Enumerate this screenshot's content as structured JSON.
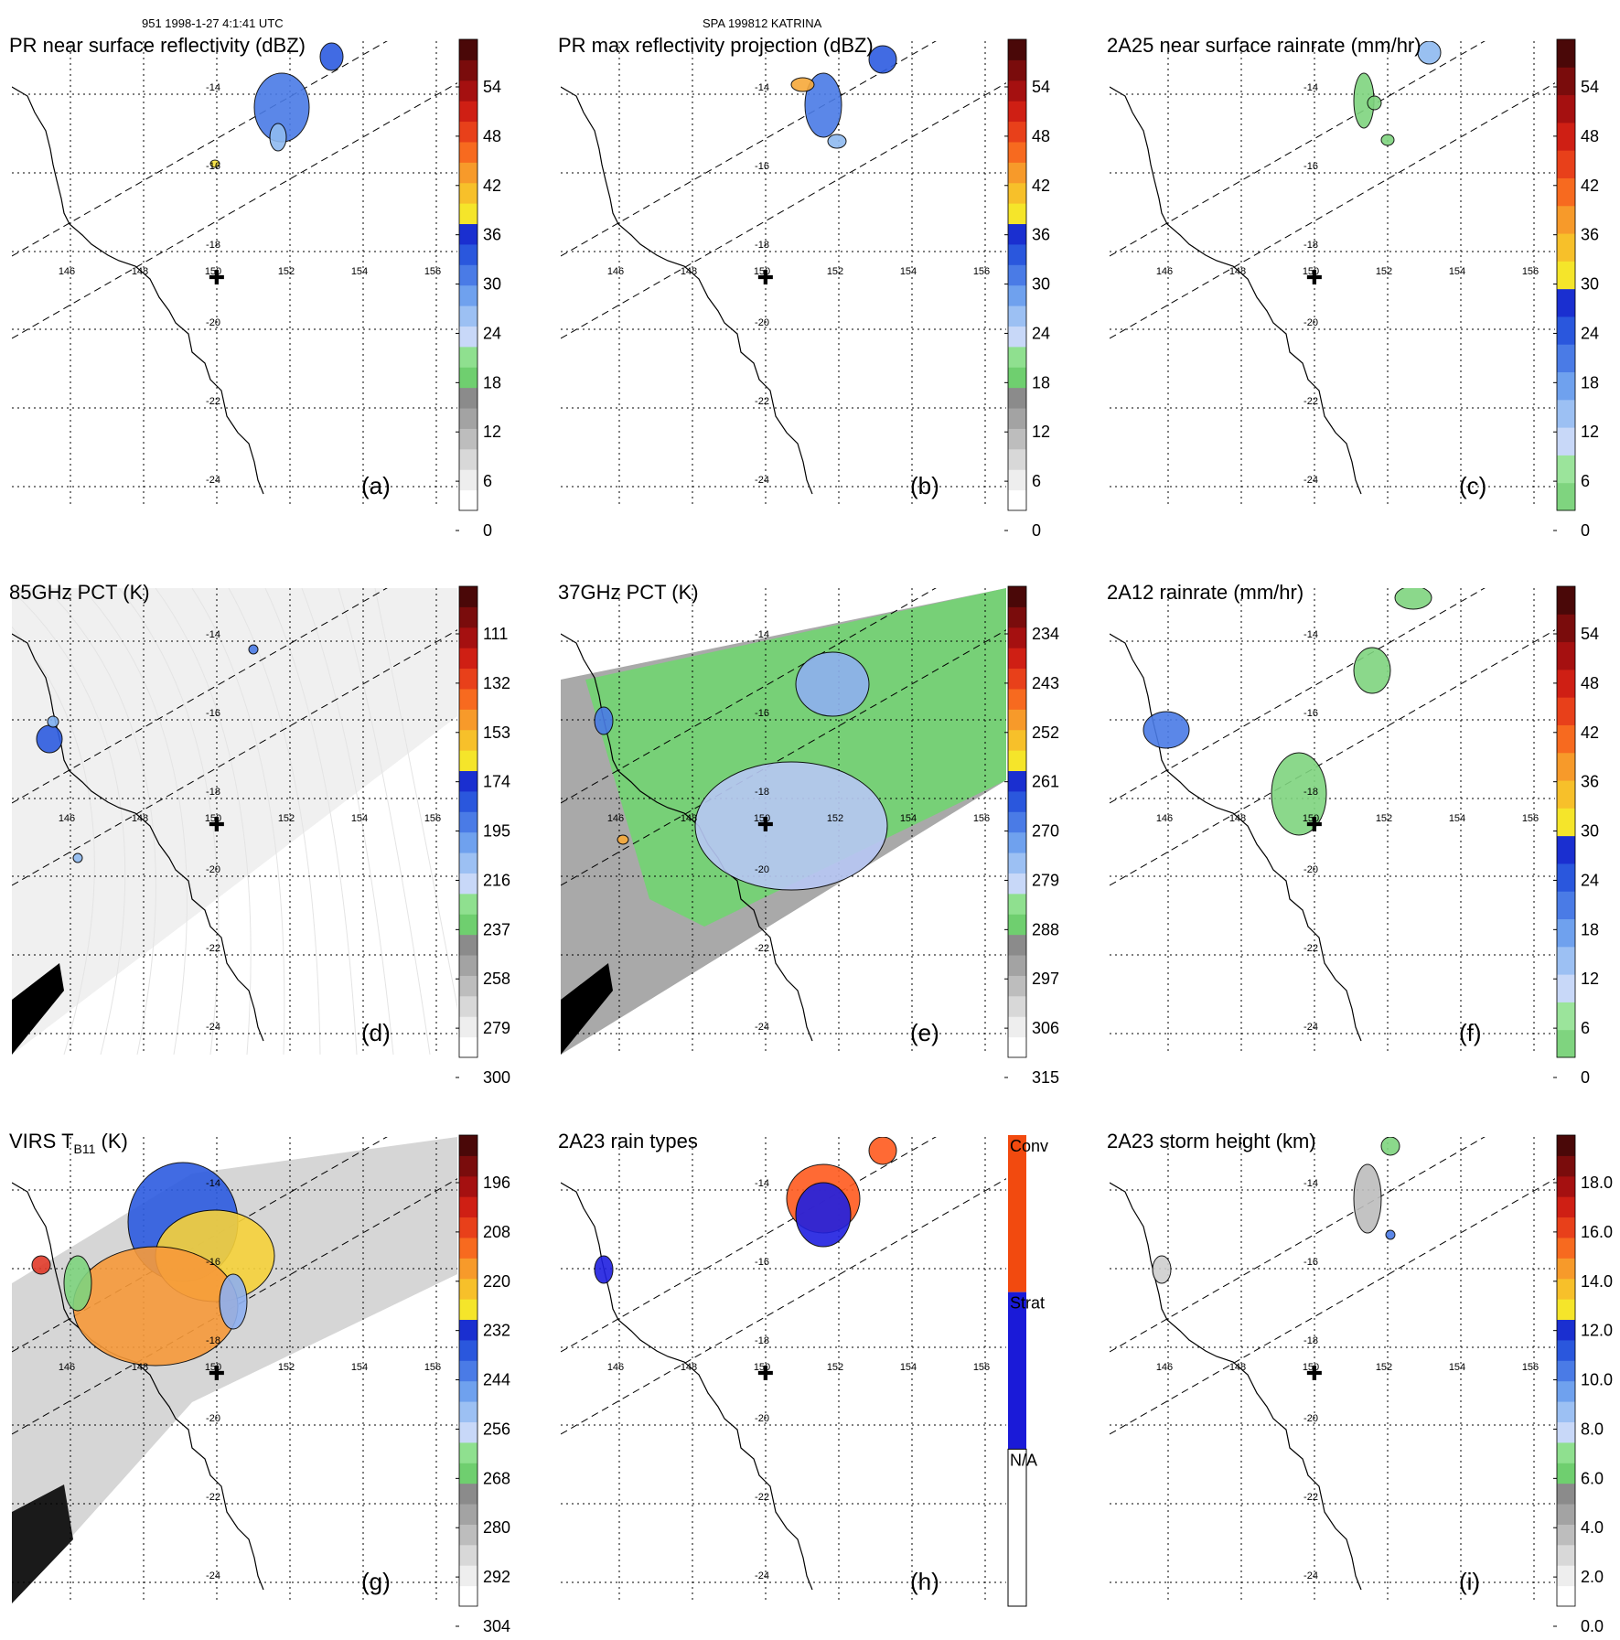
{
  "header": {
    "left": "951 1998-1-27 4:1:41 UTC",
    "center": "SPA 199812 KATRINA"
  },
  "colors": {
    "black": "#000000",
    "grid": "#000000",
    "swath": "#000000",
    "coast": "#000000",
    "whiteBg": "#ffffff"
  },
  "chart_data": [
    {
      "id": "a",
      "type": "heatmap",
      "title": "PR near surface reflectivity (dBZ)",
      "panel_label": "(a)",
      "background": "none",
      "colorbar": {
        "type": "scale",
        "tick_labels": [
          "54",
          "48",
          "42",
          "36",
          "30",
          "24",
          "18",
          "12",
          "6",
          "0"
        ]
      },
      "lon_ticks": [
        "146",
        "148",
        "150",
        "152",
        "154",
        "156"
      ],
      "lat_ticks": [
        "-14",
        "-16",
        "-18",
        "-20",
        "-22",
        "-24"
      ],
      "blobs": [
        {
          "label": "rain cell",
          "color": "#4a7be6"
        },
        {
          "label": "rain cell",
          "color": "#8fbaf0"
        },
        {
          "label": "rain cell",
          "color": "#2d5ce0"
        },
        {
          "label": "rain cell",
          "color": "#f7e23a"
        }
      ]
    },
    {
      "id": "b",
      "type": "heatmap",
      "title": "PR max reflectivity projection (dBZ)",
      "panel_label": "(b)",
      "background": "none",
      "colorbar": {
        "type": "scale",
        "tick_labels": [
          "54",
          "48",
          "42",
          "36",
          "30",
          "24",
          "18",
          "12",
          "6",
          "0"
        ]
      },
      "lon_ticks": [
        "146",
        "148",
        "150",
        "152",
        "154",
        "156"
      ],
      "lat_ticks": [
        "-14",
        "-16",
        "-18",
        "-20",
        "-22",
        "-24"
      ],
      "blobs": [
        {
          "label": "rain cell",
          "color": "#4a7be6"
        },
        {
          "label": "rain cell",
          "color": "#8fbaf0"
        },
        {
          "label": "rain cell",
          "color": "#f7a93a"
        },
        {
          "label": "rain cell",
          "color": "#2d5ce0"
        }
      ]
    },
    {
      "id": "c",
      "type": "heatmap",
      "title": "2A25 near surface rainrate (mm/hr)",
      "panel_label": "(c)",
      "background": "none",
      "colorbar": {
        "type": "scale",
        "tick_labels": [
          "54",
          "48",
          "42",
          "36",
          "30",
          "24",
          "18",
          "12",
          "6",
          "0"
        ]
      },
      "lon_ticks": [
        "146",
        "148",
        "150",
        "152",
        "154",
        "156"
      ],
      "lat_ticks": [
        "-14",
        "-16",
        "-18",
        "-20",
        "-22",
        "-24"
      ],
      "blobs": [
        {
          "label": "rain cell",
          "color": "#7fd47f"
        },
        {
          "label": "rain cell",
          "color": "#7fd47f"
        },
        {
          "label": "rain cell",
          "color": "#8fbaf0"
        },
        {
          "label": "rain cell",
          "color": "#7fd47f"
        }
      ]
    },
    {
      "id": "d",
      "type": "heatmap",
      "title": "85GHz PCT (K)",
      "panel_label": "(d)",
      "background": "light-gray",
      "colorbar": {
        "type": "scale",
        "tick_labels": [
          "111",
          "132",
          "153",
          "174",
          "195",
          "216",
          "237",
          "258",
          "279",
          "300"
        ]
      },
      "lon_ticks": [
        "146",
        "148",
        "150",
        "152",
        "154",
        "156"
      ],
      "lat_ticks": [
        "-14",
        "-16",
        "-18",
        "-20",
        "-22",
        "-24"
      ],
      "blobs": [
        {
          "label": "cold spot",
          "color": "#4a7be6"
        },
        {
          "label": "cold spot",
          "color": "#2d5ce0"
        },
        {
          "label": "cold spot",
          "color": "#8fbaf0"
        },
        {
          "label": "cold spot",
          "color": "#7fb0f0"
        }
      ]
    },
    {
      "id": "e",
      "type": "heatmap",
      "title": "37GHz PCT (K)",
      "panel_label": "(e)",
      "background": "green-gray",
      "colorbar": {
        "type": "scale",
        "tick_labels": [
          "234",
          "243",
          "252",
          "261",
          "270",
          "279",
          "288",
          "297",
          "306",
          "315"
        ]
      },
      "lon_ticks": [
        "146",
        "148",
        "150",
        "152",
        "154",
        "156"
      ],
      "lat_ticks": [
        "-14",
        "-16",
        "-18",
        "-20",
        "-22",
        "-24"
      ],
      "blobs": [
        {
          "label": "region",
          "color": "#b8c8f5"
        },
        {
          "label": "region",
          "color": "#8fb0f0"
        },
        {
          "label": "region",
          "color": "#4a7be6"
        },
        {
          "label": "region",
          "color": "#f7a93a"
        }
      ]
    },
    {
      "id": "f",
      "type": "heatmap",
      "title": "2A12 rainrate (mm/hr)",
      "panel_label": "(f)",
      "background": "none",
      "colorbar": {
        "type": "scale",
        "tick_labels": [
          "54",
          "48",
          "42",
          "36",
          "30",
          "24",
          "18",
          "12",
          "6",
          "0"
        ]
      },
      "lon_ticks": [
        "146",
        "148",
        "150",
        "152",
        "154",
        "156"
      ],
      "lat_ticks": [
        "-14",
        "-16",
        "-18",
        "-20",
        "-22",
        "-24"
      ],
      "blobs": [
        {
          "label": "rain region",
          "color": "#7fd47f"
        },
        {
          "label": "rain region",
          "color": "#7fd47f"
        },
        {
          "label": "rain region",
          "color": "#7fd47f"
        },
        {
          "label": "rain region",
          "color": "#4a7be6"
        }
      ]
    },
    {
      "id": "g",
      "type": "heatmap",
      "title": "VIRS T",
      "title_sub": "B11",
      "title_suffix": " (K)",
      "panel_label": "(g)",
      "background": "gray",
      "colorbar": {
        "type": "scale",
        "tick_labels": [
          "196",
          "208",
          "220",
          "232",
          "244",
          "256",
          "268",
          "280",
          "292",
          "304"
        ]
      },
      "lon_ticks": [
        "146",
        "148",
        "150",
        "152",
        "154",
        "156"
      ],
      "lat_ticks": [
        "-14",
        "-16",
        "-18",
        "-20",
        "-22",
        "-24"
      ],
      "blobs": [
        {
          "label": "cloud",
          "color": "#2d5ce0"
        },
        {
          "label": "cloud",
          "color": "#f7d23a"
        },
        {
          "label": "cloud",
          "color": "#f79a3a"
        },
        {
          "label": "cloud",
          "color": "#8fb0f0"
        },
        {
          "label": "cloud",
          "color": "#7fd47f"
        },
        {
          "label": "cloud",
          "color": "#e03a2a"
        }
      ]
    },
    {
      "id": "h",
      "type": "heatmap",
      "title": "2A23 rain types",
      "panel_label": "(h)",
      "background": "none",
      "colorbar": {
        "type": "categorical",
        "tick_labels": [
          "Conv",
          "Strat",
          "N/A"
        ]
      },
      "lon_ticks": [
        "146",
        "148",
        "150",
        "152",
        "154",
        "156"
      ],
      "lat_ticks": [
        "-14",
        "-16",
        "-18",
        "-20",
        "-22",
        "-24"
      ],
      "blobs": [
        {
          "label": "convective",
          "color": "#ff5a1f"
        },
        {
          "label": "stratiform",
          "color": "#2020e0"
        },
        {
          "label": "convective",
          "color": "#ff5a1f"
        },
        {
          "label": "stratiform",
          "color": "#2020e0"
        }
      ]
    },
    {
      "id": "i",
      "type": "heatmap",
      "title": "2A23 storm height (km)",
      "panel_label": "(i)",
      "background": "none",
      "colorbar": {
        "type": "scale",
        "tick_labels": [
          "18.0",
          "16.0",
          "14.0",
          "12.0",
          "10.0",
          "8.0",
          "6.0",
          "4.0",
          "2.0",
          "0.0"
        ]
      },
      "lon_ticks": [
        "146",
        "148",
        "150",
        "152",
        "154",
        "156"
      ],
      "lat_ticks": [
        "-14",
        "-16",
        "-18",
        "-20",
        "-22",
        "-24"
      ],
      "blobs": [
        {
          "label": "echo",
          "color": "#bdbdbd"
        },
        {
          "label": "echo",
          "color": "#7fd47f"
        },
        {
          "label": "echo",
          "color": "#4a7be6"
        },
        {
          "label": "echo",
          "color": "#cfcfcf"
        }
      ]
    }
  ]
}
